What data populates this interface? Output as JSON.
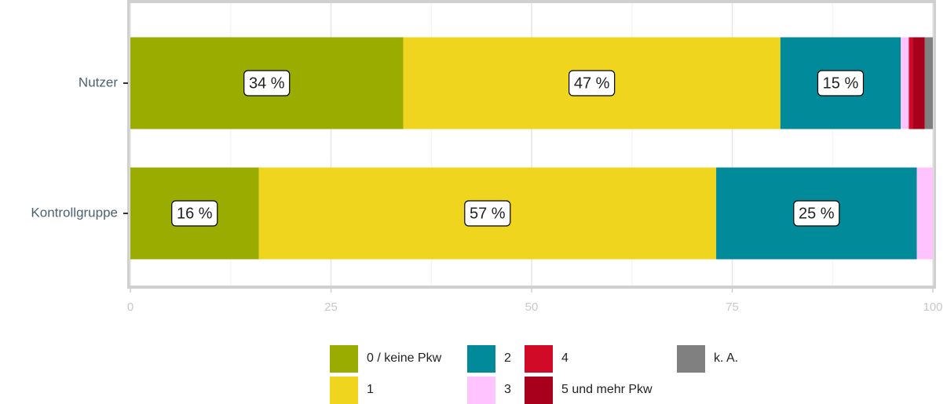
{
  "chart_data": {
    "type": "stacked-bar-horizontal",
    "categories": [
      "Nutzer",
      "Kontrollgruppe"
    ],
    "series": [
      {
        "name": "0 / keine Pkw",
        "color": "#9aac00",
        "values": [
          34,
          16
        ],
        "value_labels": [
          "34 %",
          "16 %"
        ]
      },
      {
        "name": "1",
        "color": "#f0d51e",
        "values": [
          47,
          57
        ],
        "value_labels": [
          "47 %",
          "57 %"
        ]
      },
      {
        "name": "2",
        "color": "#008a9a",
        "values": [
          15,
          25
        ],
        "value_labels": [
          "15 %",
          "25 %"
        ]
      },
      {
        "name": "3",
        "color": "#ffc4ff",
        "values": [
          1,
          2
        ]
      },
      {
        "name": "4",
        "color": "#d10a28",
        "values": [
          0.5,
          0
        ]
      },
      {
        "name": "5 und mehr Pkw",
        "color": "#a8001c",
        "values": [
          1.5,
          0
        ]
      },
      {
        "name": "k. A.",
        "color": "#808080",
        "values": [
          1,
          0
        ]
      }
    ],
    "xlim": [
      0,
      100
    ],
    "xticks": [
      0,
      25,
      50,
      75,
      100
    ],
    "xminorticks": [
      12.5,
      37.5,
      62.5,
      87.5
    ],
    "grid": true,
    "legend": "bottom"
  }
}
